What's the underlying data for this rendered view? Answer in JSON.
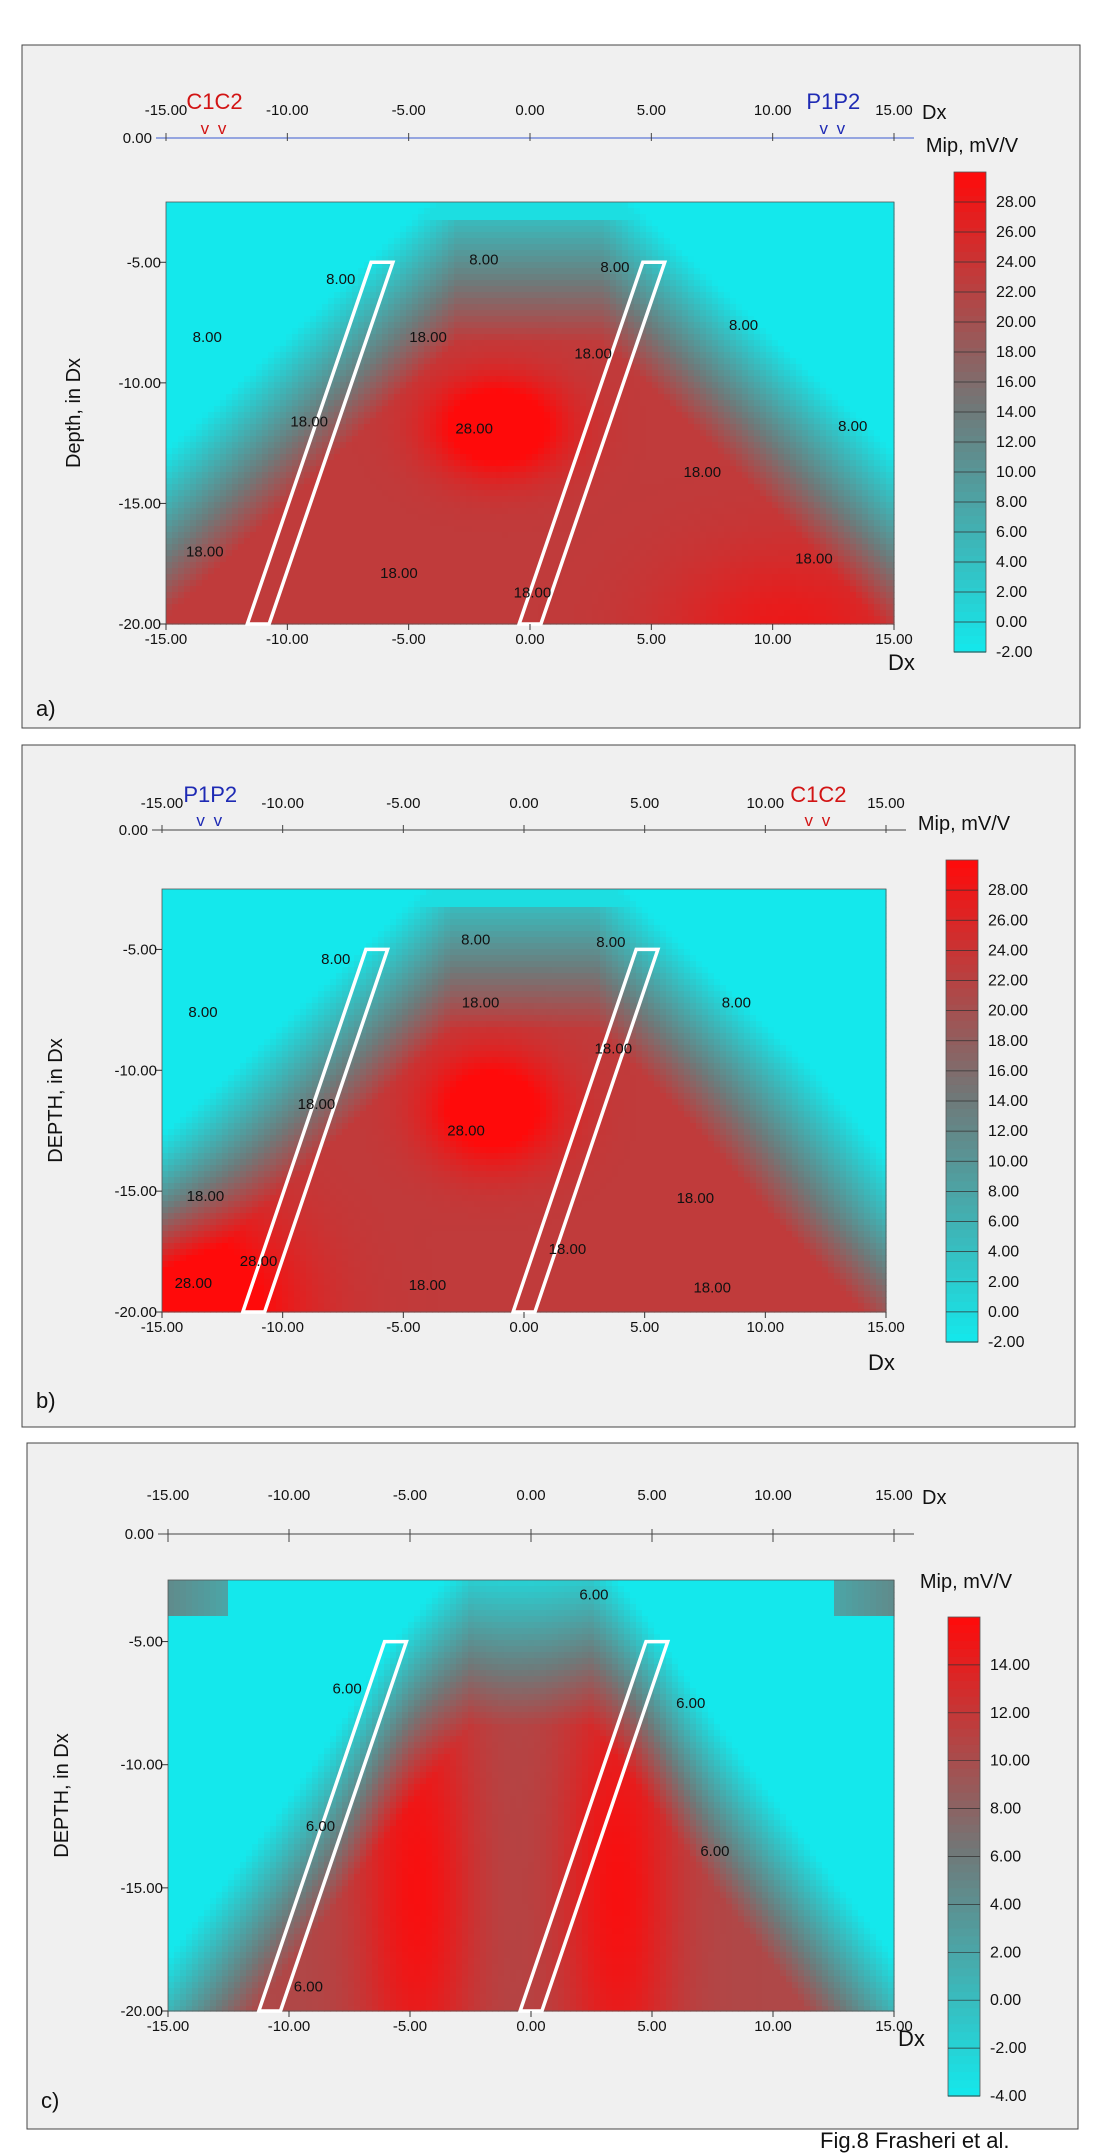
{
  "caption": "Fig.8 Frasheri et al.",
  "colors": {
    "cold": "#14e8ec",
    "mid": "#6e7a7a",
    "hot": "#ff0a0a",
    "electrode_c": "#d21414",
    "electrode_p": "#1e2ab4",
    "panel_bg": "#f0f0f0"
  },
  "chart_data": [
    {
      "type": "heatmap",
      "panel_label": "a)",
      "xlabel": "Dx",
      "top_axis_label": "Dx",
      "ylabel": "Depth, in Dx",
      "x_ticks": [
        "-15.00",
        "-10.00",
        "-5.00",
        "0.00",
        "5.00",
        "10.00",
        "15.00"
      ],
      "top_ticks": [
        "-15.00",
        "-10.00",
        "-5.00",
        "0.00",
        "5.00",
        "10.00",
        "15.00"
      ],
      "top_zero_label": "0.00",
      "y_ticks": [
        "-5.00",
        "-10.00",
        "-15.00",
        "-20.00"
      ],
      "xlim": [
        -15,
        15
      ],
      "ylim": [
        -20,
        -2.5
      ],
      "colorbar_title": "Mip, mV/V",
      "colorbar_ticks": [
        "28.00",
        "26.00",
        "24.00",
        "22.00",
        "20.00",
        "18.00",
        "16.00",
        "14.00",
        "12.00",
        "10.00",
        "8.00",
        "6.00",
        "4.00",
        "2.00",
        "0.00",
        "-2.00"
      ],
      "zlim": [
        -2,
        30
      ],
      "electrodes": [
        {
          "label": "C1C2",
          "x": -13,
          "marks": "v v",
          "color": "electrode_c"
        },
        {
          "label": "P1P2",
          "x": 12.5,
          "marks": "v v",
          "color": "electrode_p"
        }
      ],
      "dikes": [
        {
          "top_x": -6.1,
          "top_y": -5,
          "bottom_x": -11.2,
          "bottom_y": -20,
          "width": 0.9
        },
        {
          "top_x": 5.1,
          "top_y": -5,
          "bottom_x": 0,
          "bottom_y": -20,
          "width": 0.9
        }
      ],
      "contour_labels": [
        {
          "text": "8.00",
          "x": -7.8,
          "y": -5.9
        },
        {
          "text": "8.00",
          "x": -13.3,
          "y": -8.3
        },
        {
          "text": "8.00",
          "x": -1.9,
          "y": -5.1
        },
        {
          "text": "8.00",
          "x": 3.5,
          "y": -5.4
        },
        {
          "text": "8.00",
          "x": 8.8,
          "y": -7.8
        },
        {
          "text": "8.00",
          "x": 13.3,
          "y": -12
        },
        {
          "text": "18.00",
          "x": -4.2,
          "y": -8.3
        },
        {
          "text": "18.00",
          "x": 2.6,
          "y": -9
        },
        {
          "text": "18.00",
          "x": -9.1,
          "y": -11.8
        },
        {
          "text": "18.00",
          "x": -13.4,
          "y": -17.2
        },
        {
          "text": "18.00",
          "x": -5.4,
          "y": -18.1
        },
        {
          "text": "18.00",
          "x": 7.1,
          "y": -13.9
        },
        {
          "text": "18.00",
          "x": 11.7,
          "y": -17.5
        },
        {
          "text": "18.00",
          "x": 0.1,
          "y": -18.9
        },
        {
          "text": "28.00",
          "x": -2.3,
          "y": -12.1
        }
      ],
      "field": {
        "type": "a",
        "hot_centers": [
          {
            "x": -1.3,
            "y": -11.8,
            "amp": 12,
            "sx": 1.9,
            "sy": 1.4
          },
          {
            "x": 10.5,
            "y": -20.5,
            "amp": 5,
            "sx": 3.5,
            "sy": 2.5
          }
        ]
      }
    },
    {
      "type": "heatmap",
      "panel_label": "b)",
      "xlabel": "Dx",
      "top_axis_label": "",
      "ylabel": "DEPTH, in Dx",
      "x_ticks": [
        "-15.00",
        "-10.00",
        "-5.00",
        "0.00",
        "5.00",
        "10.00",
        "15.00"
      ],
      "top_ticks": [
        "-15.00",
        "-10.00",
        "-5.00",
        "0.00",
        "5.00",
        "10.00",
        "15.00"
      ],
      "top_zero_label": "0.00",
      "y_ticks": [
        "-5.00",
        "-10.00",
        "-15.00",
        "-20.00"
      ],
      "xlim": [
        -15,
        15
      ],
      "ylim": [
        -20,
        -2.5
      ],
      "colorbar_title": "Mip, mV/V",
      "colorbar_ticks": [
        "28.00",
        "26.00",
        "24.00",
        "22.00",
        "20.00",
        "18.00",
        "16.00",
        "14.00",
        "12.00",
        "10.00",
        "8.00",
        "6.00",
        "4.00",
        "2.00",
        "0.00",
        "-2.00"
      ],
      "zlim": [
        -2,
        30
      ],
      "electrodes": [
        {
          "label": "P1P2",
          "x": -13,
          "marks": "v v",
          "color": "electrode_p"
        },
        {
          "label": "C1C2",
          "x": 12.2,
          "marks": "v v",
          "color": "electrode_c"
        }
      ],
      "dikes": [
        {
          "top_x": -6.1,
          "top_y": -5,
          "bottom_x": -11.2,
          "bottom_y": -20,
          "width": 0.9
        },
        {
          "top_x": 5.1,
          "top_y": -5,
          "bottom_x": 0,
          "bottom_y": -20,
          "width": 0.9
        }
      ],
      "contour_labels": [
        {
          "text": "8.00",
          "x": -7.8,
          "y": -5.6
        },
        {
          "text": "8.00",
          "x": -13.3,
          "y": -7.8
        },
        {
          "text": "8.00",
          "x": -2,
          "y": -4.8
        },
        {
          "text": "8.00",
          "x": 3.6,
          "y": -4.9
        },
        {
          "text": "8.00",
          "x": 8.8,
          "y": -7.4
        },
        {
          "text": "18.00",
          "x": -1.8,
          "y": -7.4
        },
        {
          "text": "18.00",
          "x": 3.7,
          "y": -9.3
        },
        {
          "text": "18.00",
          "x": -8.6,
          "y": -11.6
        },
        {
          "text": "18.00",
          "x": -13.2,
          "y": -15.4
        },
        {
          "text": "28.00",
          "x": -13.7,
          "y": -19
        },
        {
          "text": "28.00",
          "x": -11,
          "y": -18.1
        },
        {
          "text": "28.00",
          "x": -2.4,
          "y": -12.7
        },
        {
          "text": "18.00",
          "x": 1.8,
          "y": -17.6
        },
        {
          "text": "18.00",
          "x": 7.1,
          "y": -15.5
        },
        {
          "text": "18.00",
          "x": -4,
          "y": -19.1
        },
        {
          "text": "18.00",
          "x": 7.8,
          "y": -19.2
        }
      ],
      "field": {
        "type": "b",
        "hot_centers": [
          {
            "x": -1.3,
            "y": -11.6,
            "amp": 11,
            "sx": 1.9,
            "sy": 1.6
          },
          {
            "x": -15,
            "y": -20,
            "amp": 14,
            "sx": 3.5,
            "sy": 3
          }
        ]
      }
    },
    {
      "type": "heatmap",
      "panel_label": "c)",
      "xlabel": "Dx",
      "top_axis_label": "Dx",
      "ylabel": "DEPTH, in Dx",
      "x_ticks": [
        "-15.00",
        "-10.00",
        "-5.00",
        "0.00",
        "5.00",
        "10.00",
        "15.00"
      ],
      "top_ticks": [
        "-15.00",
        "-10.00",
        "-5.00",
        "0.00",
        "5.00",
        "10.00",
        "15.00"
      ],
      "top_zero_label": "0.00",
      "y_ticks": [
        "-5.00",
        "-10.00",
        "-15.00",
        "-20.00"
      ],
      "xlim": [
        -15,
        15
      ],
      "ylim": [
        -20,
        -2.5
      ],
      "colorbar_title": "Mip, mV/V",
      "colorbar_ticks": [
        "14.00",
        "12.00",
        "10.00",
        "8.00",
        "6.00",
        "4.00",
        "2.00",
        "0.00",
        "-2.00",
        "-4.00"
      ],
      "zlim": [
        -4,
        16
      ],
      "electrodes": [],
      "dikes": [
        {
          "top_x": -5.6,
          "top_y": -5,
          "bottom_x": -10.8,
          "bottom_y": -20,
          "width": 0.9
        },
        {
          "top_x": 5.2,
          "top_y": -5,
          "bottom_x": 0,
          "bottom_y": -20,
          "width": 0.9
        }
      ],
      "contour_labels": [
        {
          "text": "6.00",
          "x": 2.6,
          "y": -3.3
        },
        {
          "text": "6.00",
          "x": -7.6,
          "y": -7.1
        },
        {
          "text": "6.00",
          "x": 6.6,
          "y": -7.7
        },
        {
          "text": "6.00",
          "x": -8.7,
          "y": -12.7
        },
        {
          "text": "6.00",
          "x": 7.6,
          "y": -13.7
        },
        {
          "text": "6.00",
          "x": -9.2,
          "y": -19.2
        }
      ],
      "field": {
        "type": "c",
        "hot_centers": [
          {
            "x": -4.7,
            "y": -15,
            "amp": 5,
            "sx": 1.7,
            "sy": 7
          },
          {
            "x": 3.6,
            "y": -15,
            "amp": 5,
            "sx": 1.7,
            "sy": 7
          }
        ]
      }
    }
  ]
}
